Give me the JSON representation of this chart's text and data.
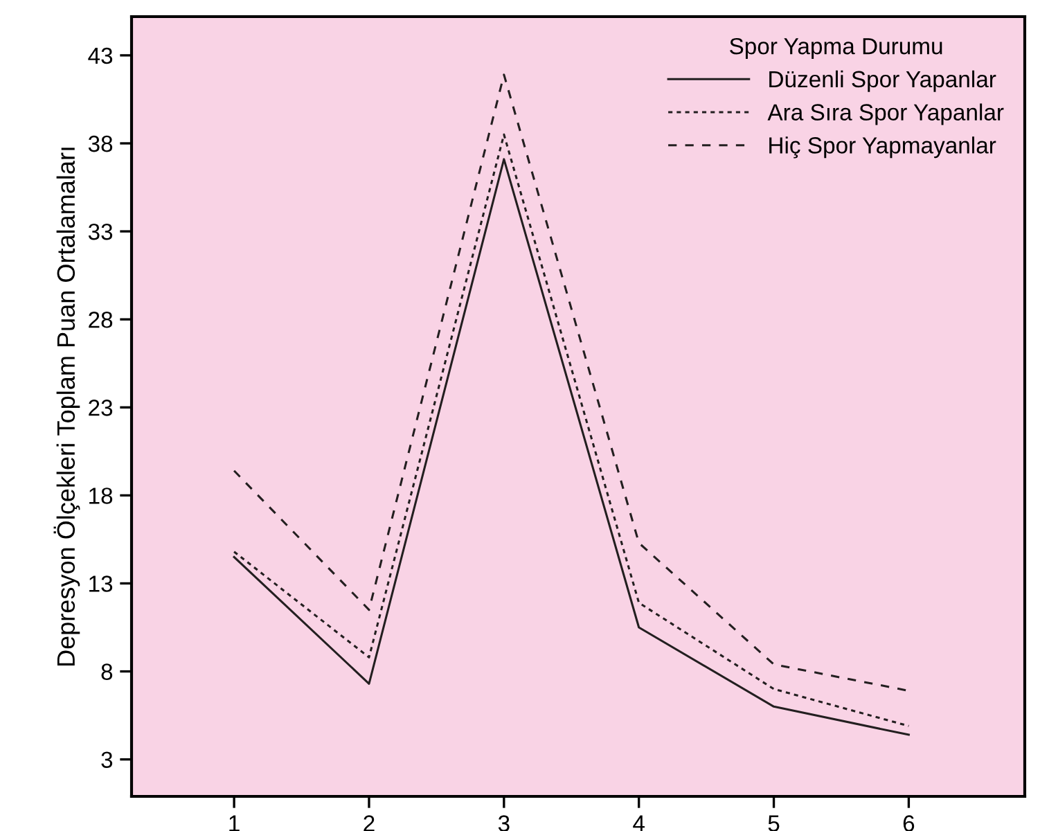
{
  "chart_data": {
    "type": "line",
    "ylabel": "Depresyon Ölçekleri Toplam Puan Ortalamaları",
    "legend_title": "Spor Yapma Durumu",
    "x": [
      1,
      2,
      3,
      4,
      5,
      6
    ],
    "xlim": [
      0.24,
      6.86
    ],
    "xticks": [
      1,
      2,
      3,
      4,
      5,
      6
    ],
    "ylim": [
      0.9,
      45.2
    ],
    "yticks": [
      3,
      8,
      13,
      18,
      23,
      28,
      33,
      38,
      43
    ],
    "grid": false,
    "legend": "top right",
    "marker": "none",
    "series": [
      {
        "name": "Düzenli Spor Yapanlar",
        "color": "#231f20",
        "line_style": "solid",
        "values": [
          14.5,
          7.3,
          37.1,
          10.5,
          6.0,
          4.4
        ]
      },
      {
        "name": "Ara Sıra Spor Yapanlar",
        "color": "#231f20",
        "line_style": "dotted",
        "values": [
          14.8,
          8.8,
          38.5,
          11.9,
          7.0,
          4.9
        ]
      },
      {
        "name": "Hiç Spor Yapmayanlar",
        "color": "#231f20",
        "line_style": "dashed",
        "values": [
          19.4,
          11.5,
          41.9,
          15.3,
          8.4,
          6.9
        ]
      }
    ]
  }
}
